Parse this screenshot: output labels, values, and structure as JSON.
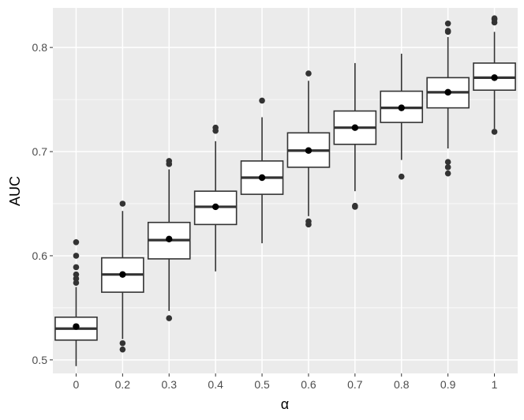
{
  "chart_data": {
    "type": "box",
    "xlabel": "α",
    "ylabel": "AUC",
    "categories": [
      "0",
      "0.2",
      "0.3",
      "0.4",
      "0.5",
      "0.6",
      "0.7",
      "0.8",
      "0.9",
      "1"
    ],
    "ylim": [
      0.487,
      0.838
    ],
    "yticks": [
      0.5,
      0.6,
      0.7,
      0.8
    ],
    "ytick_labels": [
      "0.5",
      "0.6",
      "0.7",
      "0.8"
    ],
    "grid": true,
    "legend": "none",
    "colors": {
      "panel_background": "#ebebeb",
      "grid": "#ffffff",
      "box_fill": "#ffffff",
      "box_line": "#333333",
      "points": "#000000"
    },
    "boxes": [
      {
        "category": "0",
        "whisker_low": 0.494,
        "q1": 0.519,
        "median": 0.53,
        "q3": 0.541,
        "whisker_high": 0.57,
        "mean": 0.532,
        "outliers": [
          0.574,
          0.578,
          0.582,
          0.589,
          0.6,
          0.613
        ]
      },
      {
        "category": "0.2",
        "whisker_low": 0.52,
        "q1": 0.565,
        "median": 0.582,
        "q3": 0.598,
        "whisker_high": 0.643,
        "mean": 0.582,
        "outliers": [
          0.51,
          0.516,
          0.65
        ]
      },
      {
        "category": "0.3",
        "whisker_low": 0.547,
        "q1": 0.597,
        "median": 0.615,
        "q3": 0.632,
        "whisker_high": 0.683,
        "mean": 0.616,
        "outliers": [
          0.54,
          0.688,
          0.691
        ]
      },
      {
        "category": "0.4",
        "whisker_low": 0.585,
        "q1": 0.63,
        "median": 0.647,
        "q3": 0.662,
        "whisker_high": 0.71,
        "mean": 0.647,
        "outliers": [
          0.72,
          0.723
        ]
      },
      {
        "category": "0.5",
        "whisker_low": 0.612,
        "q1": 0.659,
        "median": 0.675,
        "q3": 0.691,
        "whisker_high": 0.733,
        "mean": 0.675,
        "outliers": [
          0.749
        ]
      },
      {
        "category": "0.6",
        "whisker_low": 0.638,
        "q1": 0.685,
        "median": 0.701,
        "q3": 0.718,
        "whisker_high": 0.768,
        "mean": 0.701,
        "outliers": [
          0.63,
          0.633,
          0.775
        ]
      },
      {
        "category": "0.7",
        "whisker_low": 0.662,
        "q1": 0.707,
        "median": 0.723,
        "q3": 0.739,
        "whisker_high": 0.785,
        "mean": 0.723,
        "outliers": [
          0.647,
          0.648
        ]
      },
      {
        "category": "0.8",
        "whisker_low": 0.692,
        "q1": 0.728,
        "median": 0.742,
        "q3": 0.758,
        "whisker_high": 0.794,
        "mean": 0.742,
        "outliers": [
          0.676
        ]
      },
      {
        "category": "0.9",
        "whisker_low": 0.703,
        "q1": 0.742,
        "median": 0.757,
        "q3": 0.771,
        "whisker_high": 0.81,
        "mean": 0.757,
        "outliers": [
          0.679,
          0.685,
          0.69,
          0.815,
          0.816,
          0.823
        ]
      },
      {
        "category": "1",
        "whisker_low": 0.722,
        "q1": 0.759,
        "median": 0.771,
        "q3": 0.785,
        "whisker_high": 0.815,
        "mean": 0.771,
        "outliers": [
          0.719,
          0.824,
          0.827,
          0.828
        ]
      }
    ]
  }
}
